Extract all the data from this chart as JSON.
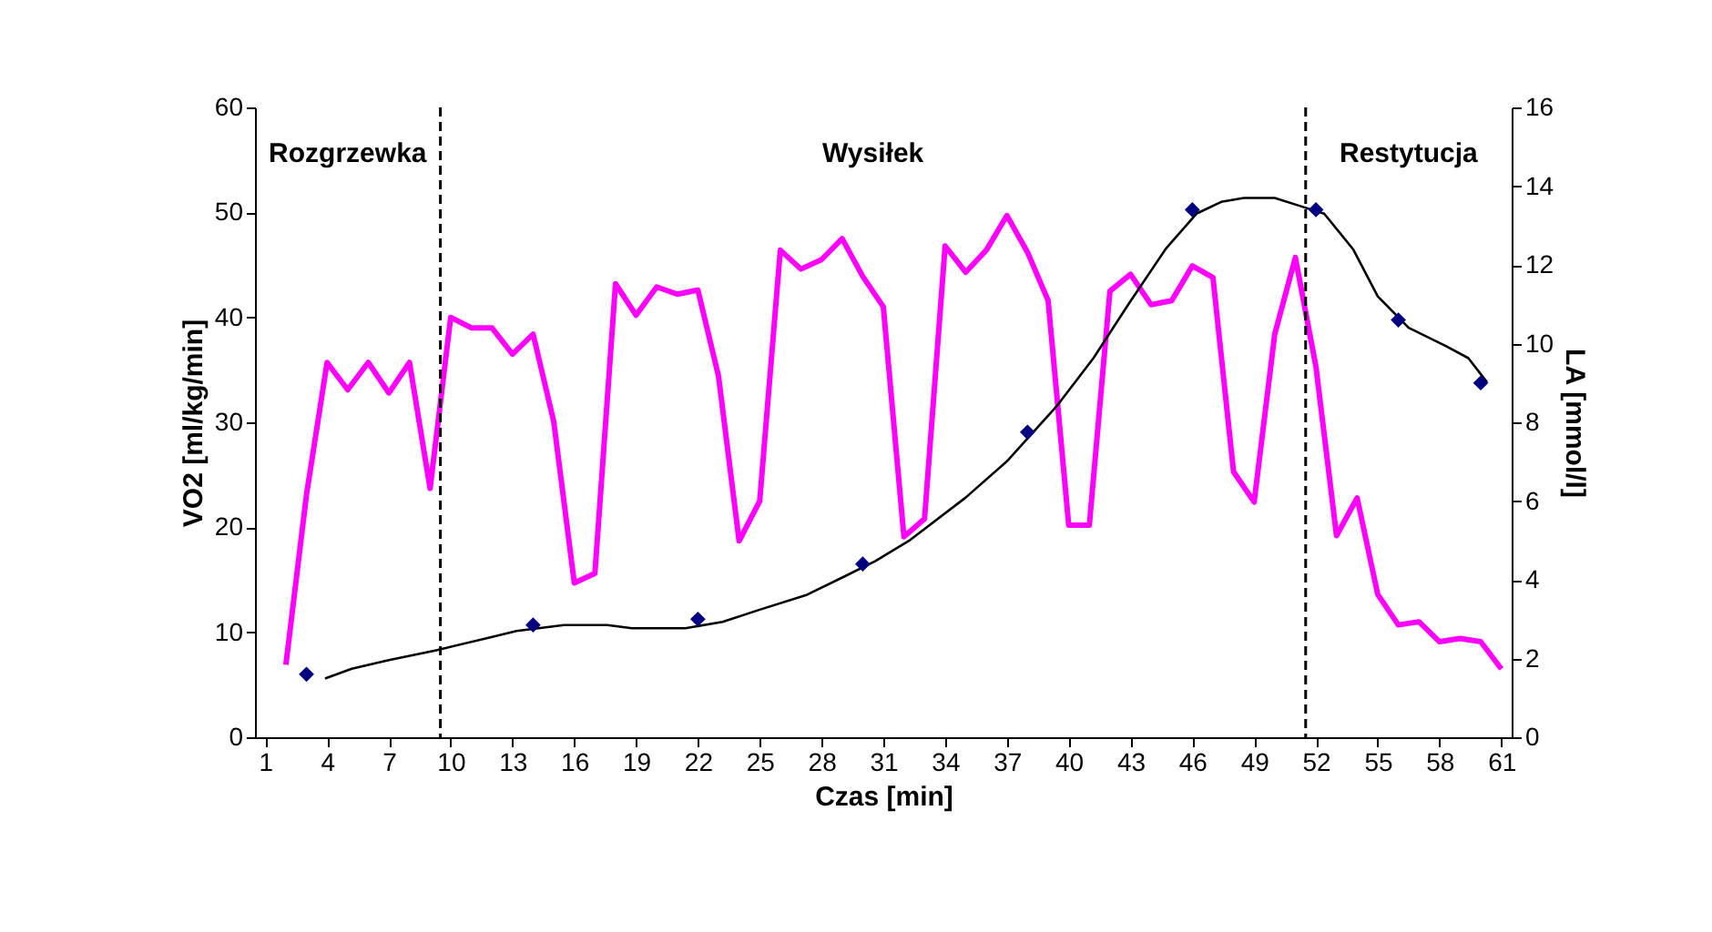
{
  "chart_data": {
    "type": "line",
    "xlabel": "Czas [min]",
    "ylabel": "VO2 [ml/kg/min]",
    "y2label": "LA [mmol/l]",
    "x": [
      2,
      3,
      4,
      5,
      6,
      7,
      8,
      9,
      10,
      11,
      12,
      13,
      14,
      15,
      16,
      17,
      18,
      19,
      20,
      21,
      22,
      23,
      24,
      25,
      26,
      27,
      28,
      29,
      30,
      31,
      32,
      33,
      34,
      35,
      36,
      37,
      38,
      39,
      40,
      41,
      42,
      43,
      44,
      45,
      46,
      47,
      48,
      49,
      50,
      51,
      52,
      53,
      54,
      55,
      56,
      57,
      58,
      59,
      60,
      61
    ],
    "series": [
      {
        "color": "#ff00ff",
        "marker": "none",
        "values": [
          6.9,
          23.1,
          35.7,
          33.1,
          35.7,
          32.8,
          35.7,
          23.7,
          40.0,
          39.0,
          39.0,
          36.5,
          38.4,
          30.1,
          14.7,
          15.6,
          43.2,
          40.2,
          42.9,
          42.2,
          42.6,
          34.4,
          18.7,
          22.5,
          46.4,
          44.6,
          45.5,
          47.5,
          43.9,
          41.0,
          19.1,
          20.8,
          46.8,
          44.3,
          46.4,
          49.7,
          46.2,
          41.6,
          20.2,
          20.2,
          42.5,
          44.1,
          41.2,
          41.6,
          44.9,
          43.8,
          25.3,
          22.4,
          38.4,
          45.7,
          35.3,
          19.2,
          22.8,
          13.6,
          10.7,
          11.0,
          9.1,
          9.4,
          9.1,
          6.5
        ]
      },
      {
        "color": "#000000",
        "marker": "none",
        "axis": "y2",
        "x": [
          3.9,
          5.2,
          7.0,
          9.3,
          11.7,
          13.2,
          15.5,
          17.6,
          18.8,
          21.4,
          23.2,
          25.0,
          27.3,
          29.1,
          30.6,
          32.3,
          35.0,
          37.0,
          39.4,
          41.2,
          42.9,
          44.7,
          46.2,
          47.4,
          48.5,
          50.0,
          51.2,
          52.4,
          53.8,
          55.0,
          56.5,
          58.3,
          59.4,
          60.3
        ],
        "values": [
          1.49,
          1.74,
          1.96,
          2.21,
          2.51,
          2.7,
          2.85,
          2.85,
          2.77,
          2.77,
          2.93,
          3.24,
          3.62,
          4.08,
          4.47,
          5.01,
          6.09,
          7.01,
          8.4,
          9.63,
          11.0,
          12.4,
          13.3,
          13.6,
          13.7,
          13.7,
          13.5,
          13.3,
          12.4,
          11.2,
          10.4,
          9.94,
          9.63,
          9.02
        ]
      },
      {
        "type": "scatter",
        "color": "#000080",
        "marker": "diamond",
        "axis": "y2",
        "x": [
          3,
          14,
          22,
          30,
          38,
          46,
          52,
          56,
          60
        ],
        "values": [
          1.6,
          2.85,
          3.0,
          4.4,
          7.75,
          13.4,
          13.4,
          10.6,
          9.0
        ]
      }
    ],
    "xlim": [
      0.5,
      61.5
    ],
    "xticks": [
      1,
      4,
      7,
      10,
      13,
      16,
      19,
      22,
      25,
      28,
      31,
      34,
      37,
      40,
      43,
      46,
      49,
      52,
      55,
      58,
      61
    ],
    "ylim": [
      0,
      60
    ],
    "yticks": [
      0,
      10,
      20,
      30,
      40,
      50,
      60
    ],
    "y2lim": [
      0,
      16
    ],
    "y2ticks": [
      0,
      2,
      4,
      6,
      8,
      10,
      12,
      14,
      16
    ],
    "ref_lines": [
      {
        "axis": "x",
        "value": 9.5,
        "color": "#000000",
        "line_style": "dashed"
      },
      {
        "axis": "x",
        "value": 51.5,
        "color": "#000000",
        "line_style": "dashed"
      }
    ],
    "annotations": [
      "Rozgrzewka",
      "Wysiłek",
      "Restytucja"
    ],
    "grid": false
  }
}
